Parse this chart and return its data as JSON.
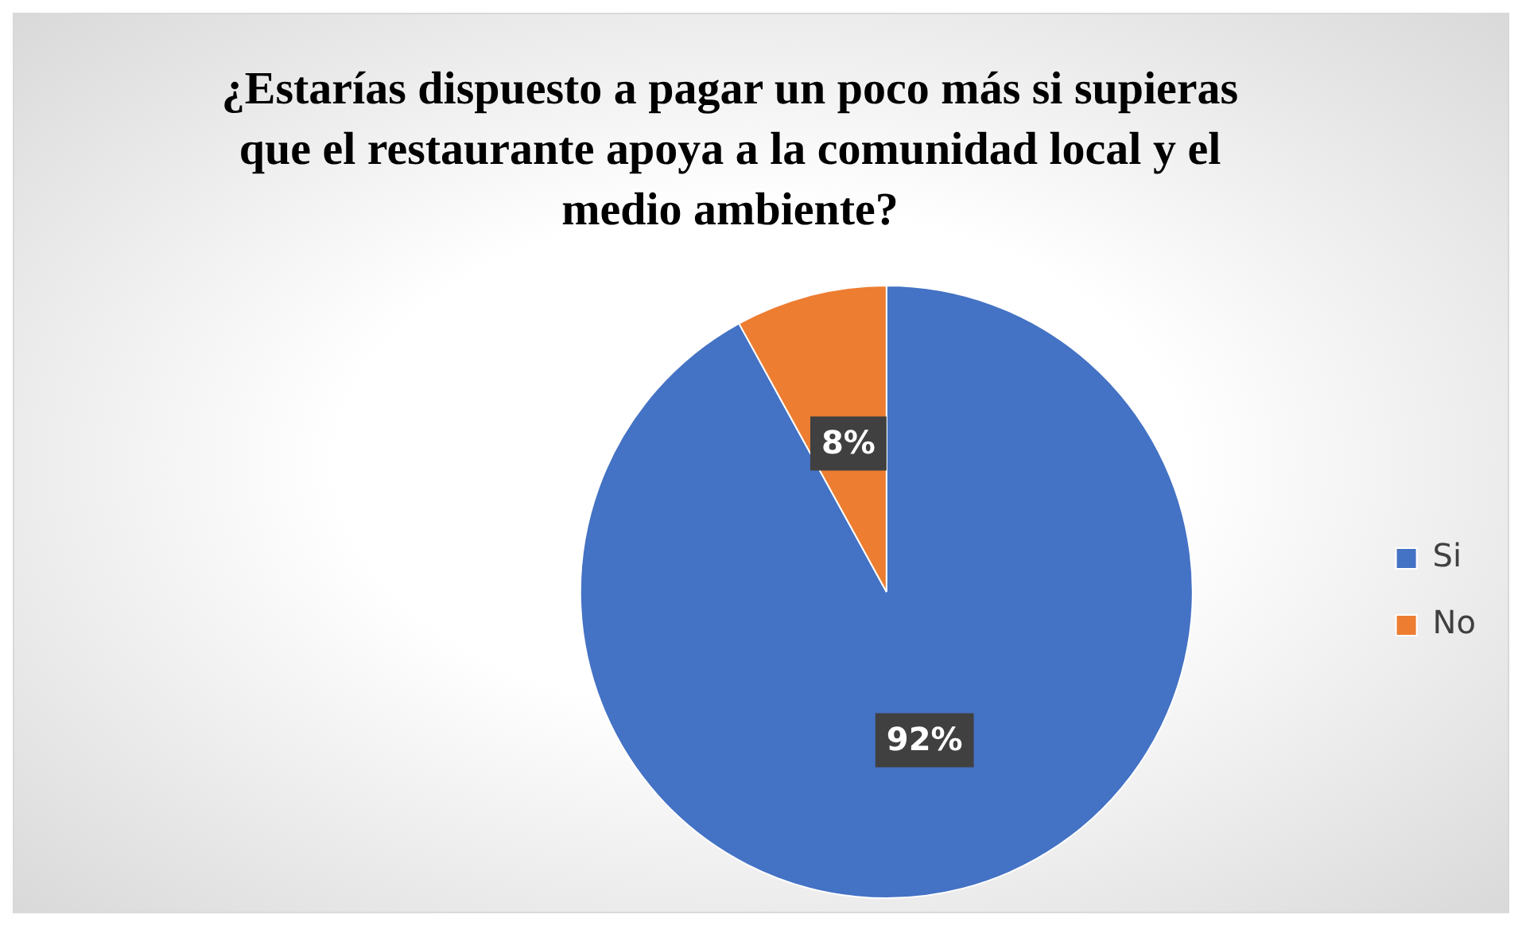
{
  "chart_data": {
    "type": "pie",
    "title": "¿Estarías dispuesto a pagar un poco más si supieras que el restaurante apoya a la comunidad local y el medio ambiente?",
    "categories": [
      "Si",
      "No"
    ],
    "values": [
      92,
      8
    ],
    "value_labels": [
      "92%",
      "8%"
    ],
    "colors": [
      "#4472c4",
      "#ed7d31"
    ],
    "legend": "right"
  }
}
